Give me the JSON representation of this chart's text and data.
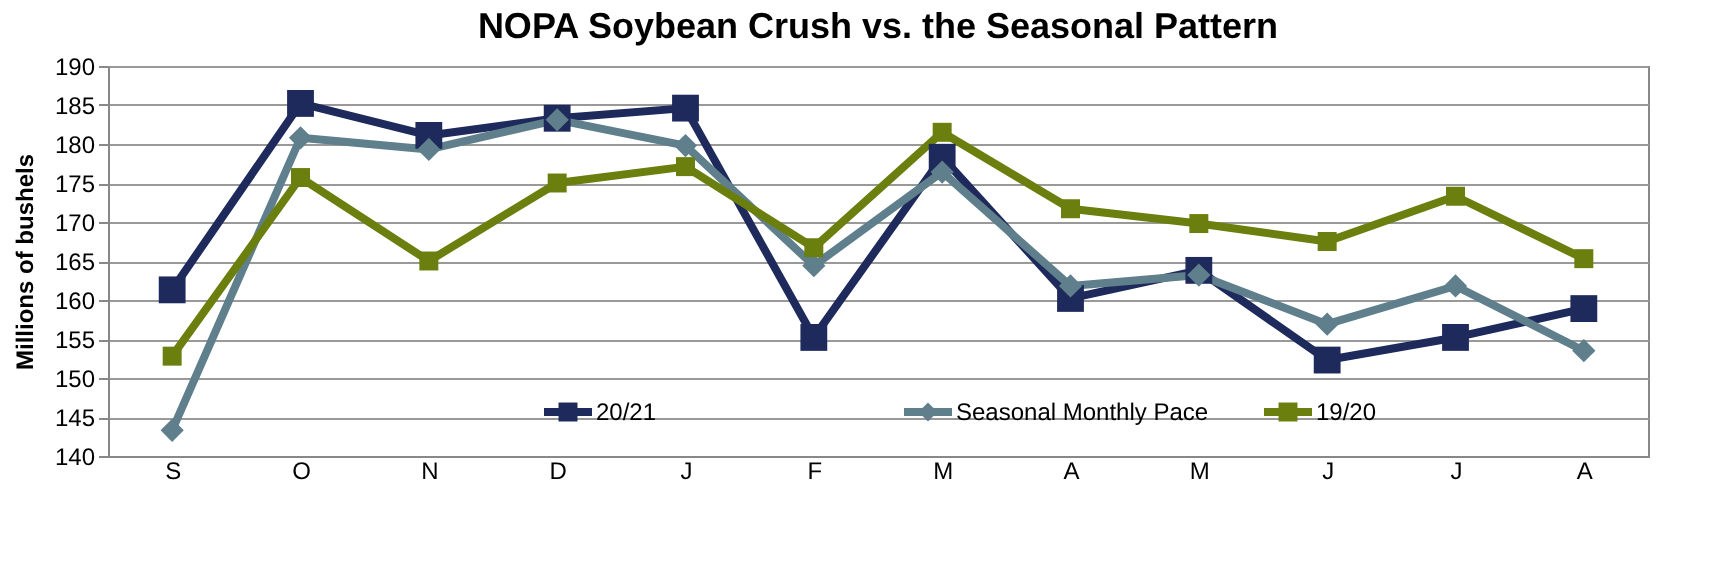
{
  "chart_data": {
    "type": "line",
    "title": "NOPA Soybean Crush vs. the Seasonal Pattern",
    "ylabel": "Millions of  bushels",
    "categories": [
      "S",
      "O",
      "N",
      "D",
      "J",
      "F",
      "M",
      "A",
      "M",
      "J",
      "J",
      "A"
    ],
    "series": [
      {
        "name": "20/21",
        "color": "#1f2a5c",
        "marker": "square",
        "values": [
          161.3,
          185.2,
          181.1,
          183.3,
          184.6,
          155.2,
          178.3,
          160.2,
          163.8,
          152.3,
          155.2,
          158.9
        ]
      },
      {
        "name": "Seasonal Monthly Pace",
        "color": "#5f7f8c",
        "marker": "diamond",
        "values": [
          143.3,
          180.8,
          179.3,
          183.1,
          179.8,
          164.4,
          176.4,
          161.8,
          163.2,
          156.9,
          161.8,
          153.5
        ]
      },
      {
        "name": "19/20",
        "color": "#6b7f0f",
        "marker": "square",
        "values": [
          152.8,
          175.7,
          165.0,
          175.0,
          177.1,
          166.7,
          181.5,
          171.7,
          169.8,
          167.5,
          173.3,
          165.3
        ]
      }
    ],
    "ylim": [
      140,
      190
    ],
    "yticks": [
      140,
      145,
      150,
      155,
      160,
      165,
      170,
      175,
      180,
      185,
      190
    ],
    "grid": "y",
    "legend": "bottom",
    "line_style": "solid"
  }
}
